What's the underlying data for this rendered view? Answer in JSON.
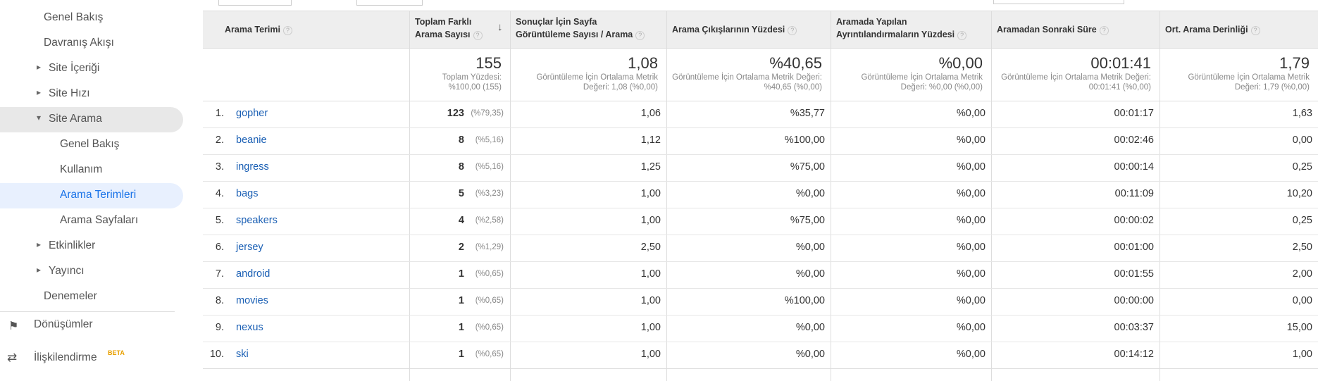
{
  "sidebar": {
    "items": [
      "Genel Bakış",
      "Davranış Akışı",
      "Site İçeriği",
      "Site Hızı",
      "Site Arama",
      "Genel Bakış",
      "Kullanım",
      "Arama Terimleri",
      "Arama Sayfaları",
      "Etkinlikler",
      "Yayıncı",
      "Denemeler"
    ],
    "conversions": "Dönüşümler",
    "attribution": "İlişkilendirme",
    "attribution_badge": "BETA"
  },
  "table": {
    "headers": [
      "Arama Terimi",
      "Toplam Farklı Arama Sayısı",
      "Sonuçlar İçin Sayfa Görüntüleme Sayısı / Arama",
      "Arama Çıkışlarının Yüzdesi",
      "Aramada Yapılan Ayrıntılandırmaların Yüzdesi",
      "Aramadan Sonraki Süre",
      "Ort. Arama Derinliği"
    ],
    "totals": [
      {
        "value": "155",
        "note": "Toplam Yüzdesi: %100,00 (155)"
      },
      {
        "value": "1,08",
        "note": "Görüntüleme İçin Ortalama Metrik Değeri: 1,08 (%0,00)"
      },
      {
        "value": "%40,65",
        "note": "Görüntüleme İçin Ortalama Metrik Değeri: %40,65 (%0,00)"
      },
      {
        "value": "%0,00",
        "note": "Görüntüleme İçin Ortalama Metrik Değeri: %0,00 (%0,00)"
      },
      {
        "value": "00:01:41",
        "note": "Görüntüleme İçin Ortalama Metrik Değeri: 00:01:41 (%0,00)"
      },
      {
        "value": "1,79",
        "note": "Görüntüleme İçin Ortalama Metrik Değeri: 1,79 (%0,00)"
      }
    ],
    "rows": [
      {
        "rank": "1.",
        "term": "gopher",
        "count": "123",
        "share": "(%79,35)",
        "values": [
          "1,06",
          "%35,77",
          "%0,00",
          "00:01:17",
          "1,63"
        ]
      },
      {
        "rank": "2.",
        "term": "beanie",
        "count": "8",
        "share": "(%5,16)",
        "values": [
          "1,12",
          "%100,00",
          "%0,00",
          "00:02:46",
          "0,00"
        ]
      },
      {
        "rank": "3.",
        "term": "ingress",
        "count": "8",
        "share": "(%5,16)",
        "values": [
          "1,25",
          "%75,00",
          "%0,00",
          "00:00:14",
          "0,25"
        ]
      },
      {
        "rank": "4.",
        "term": "bags",
        "count": "5",
        "share": "(%3,23)",
        "values": [
          "1,00",
          "%0,00",
          "%0,00",
          "00:11:09",
          "10,20"
        ]
      },
      {
        "rank": "5.",
        "term": "speakers",
        "count": "4",
        "share": "(%2,58)",
        "values": [
          "1,00",
          "%75,00",
          "%0,00",
          "00:00:02",
          "0,25"
        ]
      },
      {
        "rank": "6.",
        "term": "jersey",
        "count": "2",
        "share": "(%1,29)",
        "values": [
          "2,50",
          "%0,00",
          "%0,00",
          "00:01:00",
          "2,50"
        ]
      },
      {
        "rank": "7.",
        "term": "android",
        "count": "1",
        "share": "(%0,65)",
        "values": [
          "1,00",
          "%0,00",
          "%0,00",
          "00:01:55",
          "2,00"
        ]
      },
      {
        "rank": "8.",
        "term": "movies",
        "count": "1",
        "share": "(%0,65)",
        "values": [
          "1,00",
          "%100,00",
          "%0,00",
          "00:00:00",
          "0,00"
        ]
      },
      {
        "rank": "9.",
        "term": "nexus",
        "count": "1",
        "share": "(%0,65)",
        "values": [
          "1,00",
          "%0,00",
          "%0,00",
          "00:03:37",
          "15,00"
        ]
      },
      {
        "rank": "10.",
        "term": "ski",
        "count": "1",
        "share": "(%0,65)",
        "values": [
          "1,00",
          "%0,00",
          "%0,00",
          "00:14:12",
          "1,00"
        ]
      }
    ]
  }
}
